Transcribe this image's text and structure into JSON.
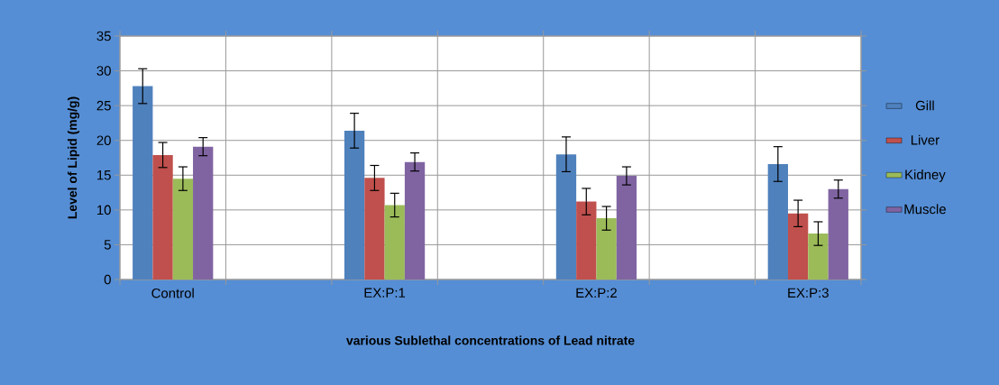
{
  "chart_data": {
    "type": "bar",
    "xlabel": "various Sublethal concentrations of Lead nitrate",
    "ylabel": "Level of  Lipid (mg/g)",
    "categories": [
      "Control",
      null,
      "EX:P:1",
      null,
      "EX:P:2",
      null,
      "EX:P:3"
    ],
    "series": [
      {
        "name": "Gill",
        "color": "#4f81bd",
        "values": [
          27.8,
          null,
          21.4,
          null,
          18.0,
          null,
          16.6
        ],
        "errors": [
          2.5,
          null,
          2.5,
          null,
          2.5,
          null,
          2.5
        ]
      },
      {
        "name": "Liver",
        "color": "#c0504d",
        "values": [
          17.9,
          null,
          14.6,
          null,
          11.2,
          null,
          9.5
        ],
        "errors": [
          1.8,
          null,
          1.8,
          null,
          1.9,
          null,
          1.9
        ]
      },
      {
        "name": "Kidney",
        "color": "#9bbb59",
        "values": [
          14.5,
          null,
          10.7,
          null,
          8.8,
          null,
          6.6
        ],
        "errors": [
          1.7,
          null,
          1.7,
          null,
          1.7,
          null,
          1.7
        ]
      },
      {
        "name": "Muscle",
        "color": "#8064a2",
        "values": [
          19.1,
          null,
          16.9,
          null,
          14.9,
          null,
          13.0
        ],
        "errors": [
          1.3,
          null,
          1.3,
          null,
          1.3,
          null,
          1.3
        ]
      }
    ],
    "ylim": [
      0,
      35
    ],
    "yticks": [
      0,
      5,
      10,
      15,
      20,
      25,
      30,
      35
    ],
    "grid": true,
    "legend": "right"
  }
}
